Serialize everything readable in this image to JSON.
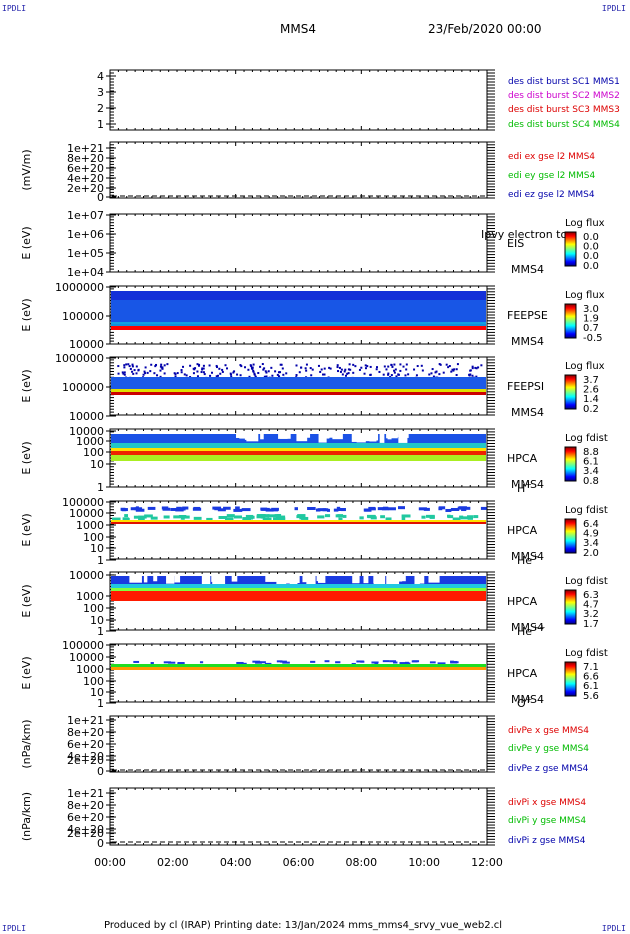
{
  "corners": {
    "tl": "IPDLI",
    "tr": "IPDLI",
    "bl": "IPDLI",
    "br": "IPDLI"
  },
  "header": {
    "spacecraft": "MMS4",
    "datetime": "23/Feb/2020 00:00"
  },
  "footer": "Produced by cl (IRAP)   Printing date: 13/Jan/2024   mms_mms4_srvy_vue_web2.cl",
  "colors": {
    "red": "#dd0000",
    "green": "#00bb00",
    "blue": "#0000aa",
    "magenta": "#cc00cc",
    "dashed": "#000000"
  },
  "panels": {
    "p1": {
      "ticks": [
        "4",
        "3",
        "2",
        "1"
      ],
      "legend": [
        "des dist burst SC1 MMS1",
        "des dist burst SC2 MMS2",
        "des dist burst SC3 MMS3",
        "des dist burst SC4 MMS4"
      ]
    },
    "p2": {
      "ylabel": "(mV/m)",
      "ticks": [
        "1e+21",
        "8e+20",
        "6e+20",
        "4e+20",
        "2e+20",
        "0"
      ],
      "legend": [
        "edi ex gse l2 MMS4",
        "edi ey gse l2 MMS4",
        "edi ez gse l2 MMS4"
      ]
    },
    "p3": {
      "ylabel": "E (eV)",
      "ticks": [
        "1e+07",
        "1e+06",
        "1e+05",
        "1e+04"
      ],
      "inst": "EIS",
      "overlay": "Ipvy electron to",
      "sc": "MMS4",
      "cbtitle": "Log flux",
      "cb": [
        "0.0",
        "0.0",
        "0.0",
        "0.0"
      ]
    },
    "p4": {
      "ylabel": "E (eV)",
      "ticks": [
        "1000000",
        "100000",
        "10000"
      ],
      "inst": "FEEPSE",
      "sc": "MMS4",
      "cbtitle": "Log flux",
      "cb": [
        "3.0",
        "1.9",
        "0.7",
        "-0.5"
      ]
    },
    "p5": {
      "ylabel": "E (eV)",
      "ticks": [
        "1000000",
        "100000",
        "10000"
      ],
      "inst": "FEEPSI",
      "sc": "MMS4",
      "cbtitle": "Log flux",
      "cb": [
        "3.7",
        "2.6",
        "1.4",
        "0.2"
      ]
    },
    "p6": {
      "ylabel": "E (eV)",
      "ticks": [
        "10000",
        "1000",
        "100",
        "10",
        "1"
      ],
      "inst": "HPCA",
      "sc": "MMS4",
      "ion": "H",
      "ionsup": "+",
      "cbtitle": "Log fdist",
      "cb": [
        "8.8",
        "6.1",
        "3.4",
        "0.8"
      ]
    },
    "p7": {
      "ylabel": "E (eV)",
      "ticks": [
        "100000",
        "10000",
        "1000",
        "100",
        "10",
        "1"
      ],
      "inst": "HPCA",
      "sc": "MMS4",
      "ion": "He",
      "ionsup": "+",
      "cbtitle": "Log fdist",
      "cb": [
        "6.4",
        "4.9",
        "3.4",
        "2.0"
      ]
    },
    "p8": {
      "ylabel": "E (eV)",
      "ticks": [
        "10000",
        "1000",
        "100",
        "10",
        "1"
      ],
      "inst": "HPCA",
      "sc": "MMS4",
      "ion": "He",
      "ionsup": "++",
      "cbtitle": "Log fdist",
      "cb": [
        "6.3",
        "4.7",
        "3.2",
        "1.7"
      ]
    },
    "p9": {
      "ylabel": "E (eV)",
      "ticks": [
        "100000",
        "10000",
        "1000",
        "100",
        "10",
        "1"
      ],
      "inst": "HPCA",
      "sc": "MMS4",
      "ion": "O",
      "ionsup": "+",
      "cbtitle": "Log fdist",
      "cb": [
        "7.1",
        "6.6",
        "6.1",
        "5.6"
      ]
    },
    "p10": {
      "ylabel": "(nPa/km)",
      "ticks": [
        "1e+21",
        "8e+20",
        "6e+20",
        "4e+20",
        "2e+20",
        "0"
      ],
      "legend": [
        "divPe x gse MMS4",
        "divPe y gse MMS4",
        "divPe z gse MMS4"
      ]
    },
    "p11": {
      "ylabel": "(nPa/km)",
      "ticks": [
        "1e+21",
        "8e+20",
        "6e+20",
        "4e+20",
        "2e+20",
        "0"
      ],
      "legend": [
        "divPi x gse MMS4",
        "divPi y gse MMS4",
        "divPi z gse MMS4"
      ]
    }
  },
  "chart_data": {
    "type": "heatmap",
    "x_ticks": [
      "00:00",
      "02:00",
      "04:00",
      "06:00",
      "08:00",
      "10:00",
      "12:00"
    ],
    "x_range": [
      "00:00",
      "12:00"
    ]
  }
}
